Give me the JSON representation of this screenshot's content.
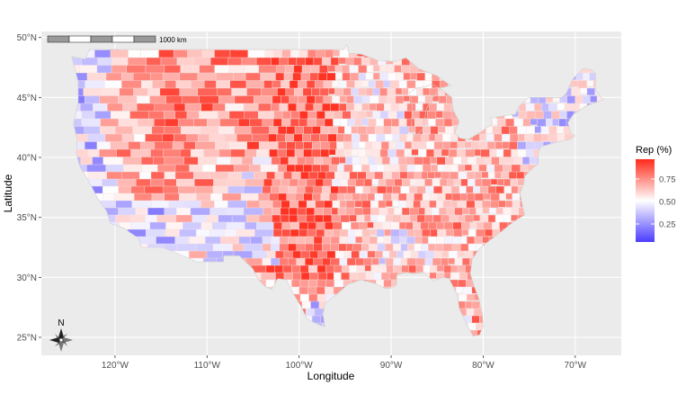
{
  "map": {
    "xlabel": "Longitude",
    "ylabel": "Latitude",
    "x_ticks": [
      {
        "lon": -120,
        "label": "120°W"
      },
      {
        "lon": -110,
        "label": "110°W"
      },
      {
        "lon": -100,
        "label": "100°W"
      },
      {
        "lon": -90,
        "label": "90°W"
      },
      {
        "lon": -80,
        "label": "80°W"
      },
      {
        "lon": -70,
        "label": "70°W"
      }
    ],
    "y_ticks": [
      {
        "lat": 25,
        "label": "25°N"
      },
      {
        "lat": 30,
        "label": "30°N"
      },
      {
        "lat": 35,
        "label": "35°N"
      },
      {
        "lat": 40,
        "label": "40°N"
      },
      {
        "lat": 45,
        "label": "45°N"
      },
      {
        "lat": 50,
        "label": "50°N"
      }
    ],
    "lon_range": [
      -128,
      -65
    ],
    "lat_range": [
      23.5,
      50.5
    ],
    "panel_background": "#ebebeb",
    "grid_color": "#ffffff"
  },
  "legend": {
    "title": "Rep (%)",
    "labels": [
      {
        "value": 0.75,
        "label": "0.75"
      },
      {
        "value": 0.5,
        "label": "0.50"
      },
      {
        "value": 0.25,
        "label": "0.25"
      }
    ],
    "domain": [
      0.05,
      0.97
    ],
    "colors": {
      "low": "#4b3cff",
      "mid": "#ffffff",
      "high": "#ff2a1a"
    }
  },
  "scalebar": {
    "label": "1000 km"
  },
  "north_arrow": {
    "label": "N"
  }
}
